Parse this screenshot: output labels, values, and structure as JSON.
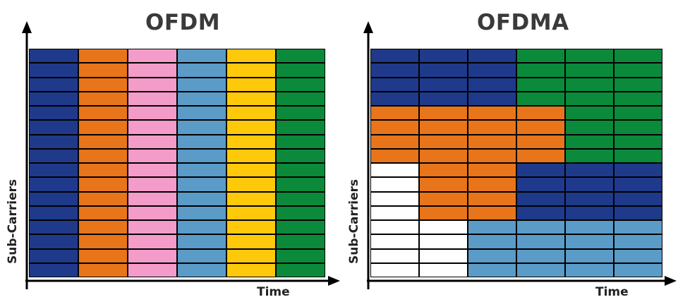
{
  "colors": {
    "navy": "#1f3a8a",
    "orange": "#e8751a",
    "pink": "#f39bc9",
    "lightblue": "#5b9bc7",
    "yellow": "#ffc90b",
    "green": "#0a8a3a",
    "white": "#ffffff"
  },
  "panels": [
    {
      "title": "OFDM",
      "xlabel": "Time",
      "ylabel": "Sub-Carriers",
      "rows": 16,
      "cols": 6,
      "blocks": [
        {
          "rows": [
            0,
            15
          ],
          "cols": [
            0,
            0
          ],
          "color": "navy"
        },
        {
          "rows": [
            0,
            15
          ],
          "cols": [
            1,
            1
          ],
          "color": "orange"
        },
        {
          "rows": [
            0,
            15
          ],
          "cols": [
            2,
            2
          ],
          "color": "pink"
        },
        {
          "rows": [
            0,
            15
          ],
          "cols": [
            3,
            3
          ],
          "color": "lightblue"
        },
        {
          "rows": [
            0,
            15
          ],
          "cols": [
            4,
            4
          ],
          "color": "yellow"
        },
        {
          "rows": [
            0,
            15
          ],
          "cols": [
            5,
            5
          ],
          "color": "green"
        }
      ]
    },
    {
      "title": "OFDMA",
      "xlabel": "Time",
      "ylabel": "Sub-Carriers",
      "rows": 16,
      "cols": 6,
      "blocks": [
        {
          "rows": [
            0,
            3
          ],
          "cols": [
            0,
            2
          ],
          "color": "navy"
        },
        {
          "rows": [
            0,
            3
          ],
          "cols": [
            3,
            5
          ],
          "color": "green"
        },
        {
          "rows": [
            4,
            7
          ],
          "cols": [
            0,
            3
          ],
          "color": "orange"
        },
        {
          "rows": [
            4,
            7
          ],
          "cols": [
            4,
            5
          ],
          "color": "green"
        },
        {
          "rows": [
            8,
            11
          ],
          "cols": [
            0,
            0
          ],
          "color": "white"
        },
        {
          "rows": [
            8,
            11
          ],
          "cols": [
            1,
            2
          ],
          "color": "orange"
        },
        {
          "rows": [
            8,
            11
          ],
          "cols": [
            3,
            5
          ],
          "color": "navy"
        },
        {
          "rows": [
            12,
            15
          ],
          "cols": [
            0,
            1
          ],
          "color": "white"
        },
        {
          "rows": [
            12,
            15
          ],
          "cols": [
            2,
            5
          ],
          "color": "lightblue"
        }
      ]
    }
  ]
}
